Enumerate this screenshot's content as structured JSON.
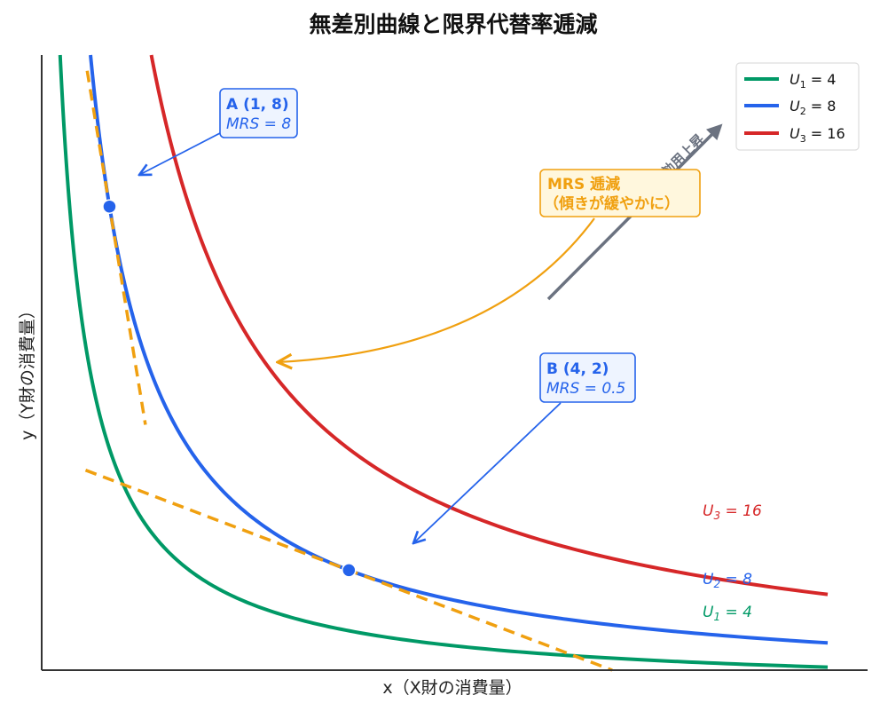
{
  "chart_data": {
    "type": "line",
    "title": "無差別曲線と限界代替率逓減",
    "xlabel": "x（X財の消費量）",
    "ylabel": "y（Y財の消費量）",
    "xlim": [
      0.15,
      10.5
    ],
    "ylim": [
      0.35,
      10.5
    ],
    "grid": false,
    "legend_position": "top-right",
    "series": [
      {
        "name": "U₁ = 4",
        "label_base": "U",
        "label_sub": "1",
        "label_rest": " = 4",
        "utility": 4,
        "color": "#009966"
      },
      {
        "name": "U₂ = 8",
        "label_base": "U",
        "label_sub": "2",
        "label_rest": " = 8",
        "utility": 8,
        "color": "#2563eb"
      },
      {
        "name": "U₃ = 16",
        "label_base": "U",
        "label_sub": "3",
        "label_rest": " = 16",
        "utility": 16,
        "color": "#d62728"
      }
    ],
    "points": [
      {
        "id": "A",
        "x": 1,
        "y": 8,
        "mrs": 8,
        "label": "A (1, 8)",
        "mrs_label": "MRS = 8"
      },
      {
        "id": "B",
        "x": 4,
        "y": 2,
        "mrs": 0.5,
        "label": "B (4, 2)",
        "mrs_label": "MRS = 0.5"
      }
    ],
    "tangent_color": "#f0a010",
    "annotations": {
      "mrs_line1": "MRS 逓減",
      "mrs_line2": "（傾きが緩やかに）",
      "utility_up": "効用上昇"
    }
  }
}
